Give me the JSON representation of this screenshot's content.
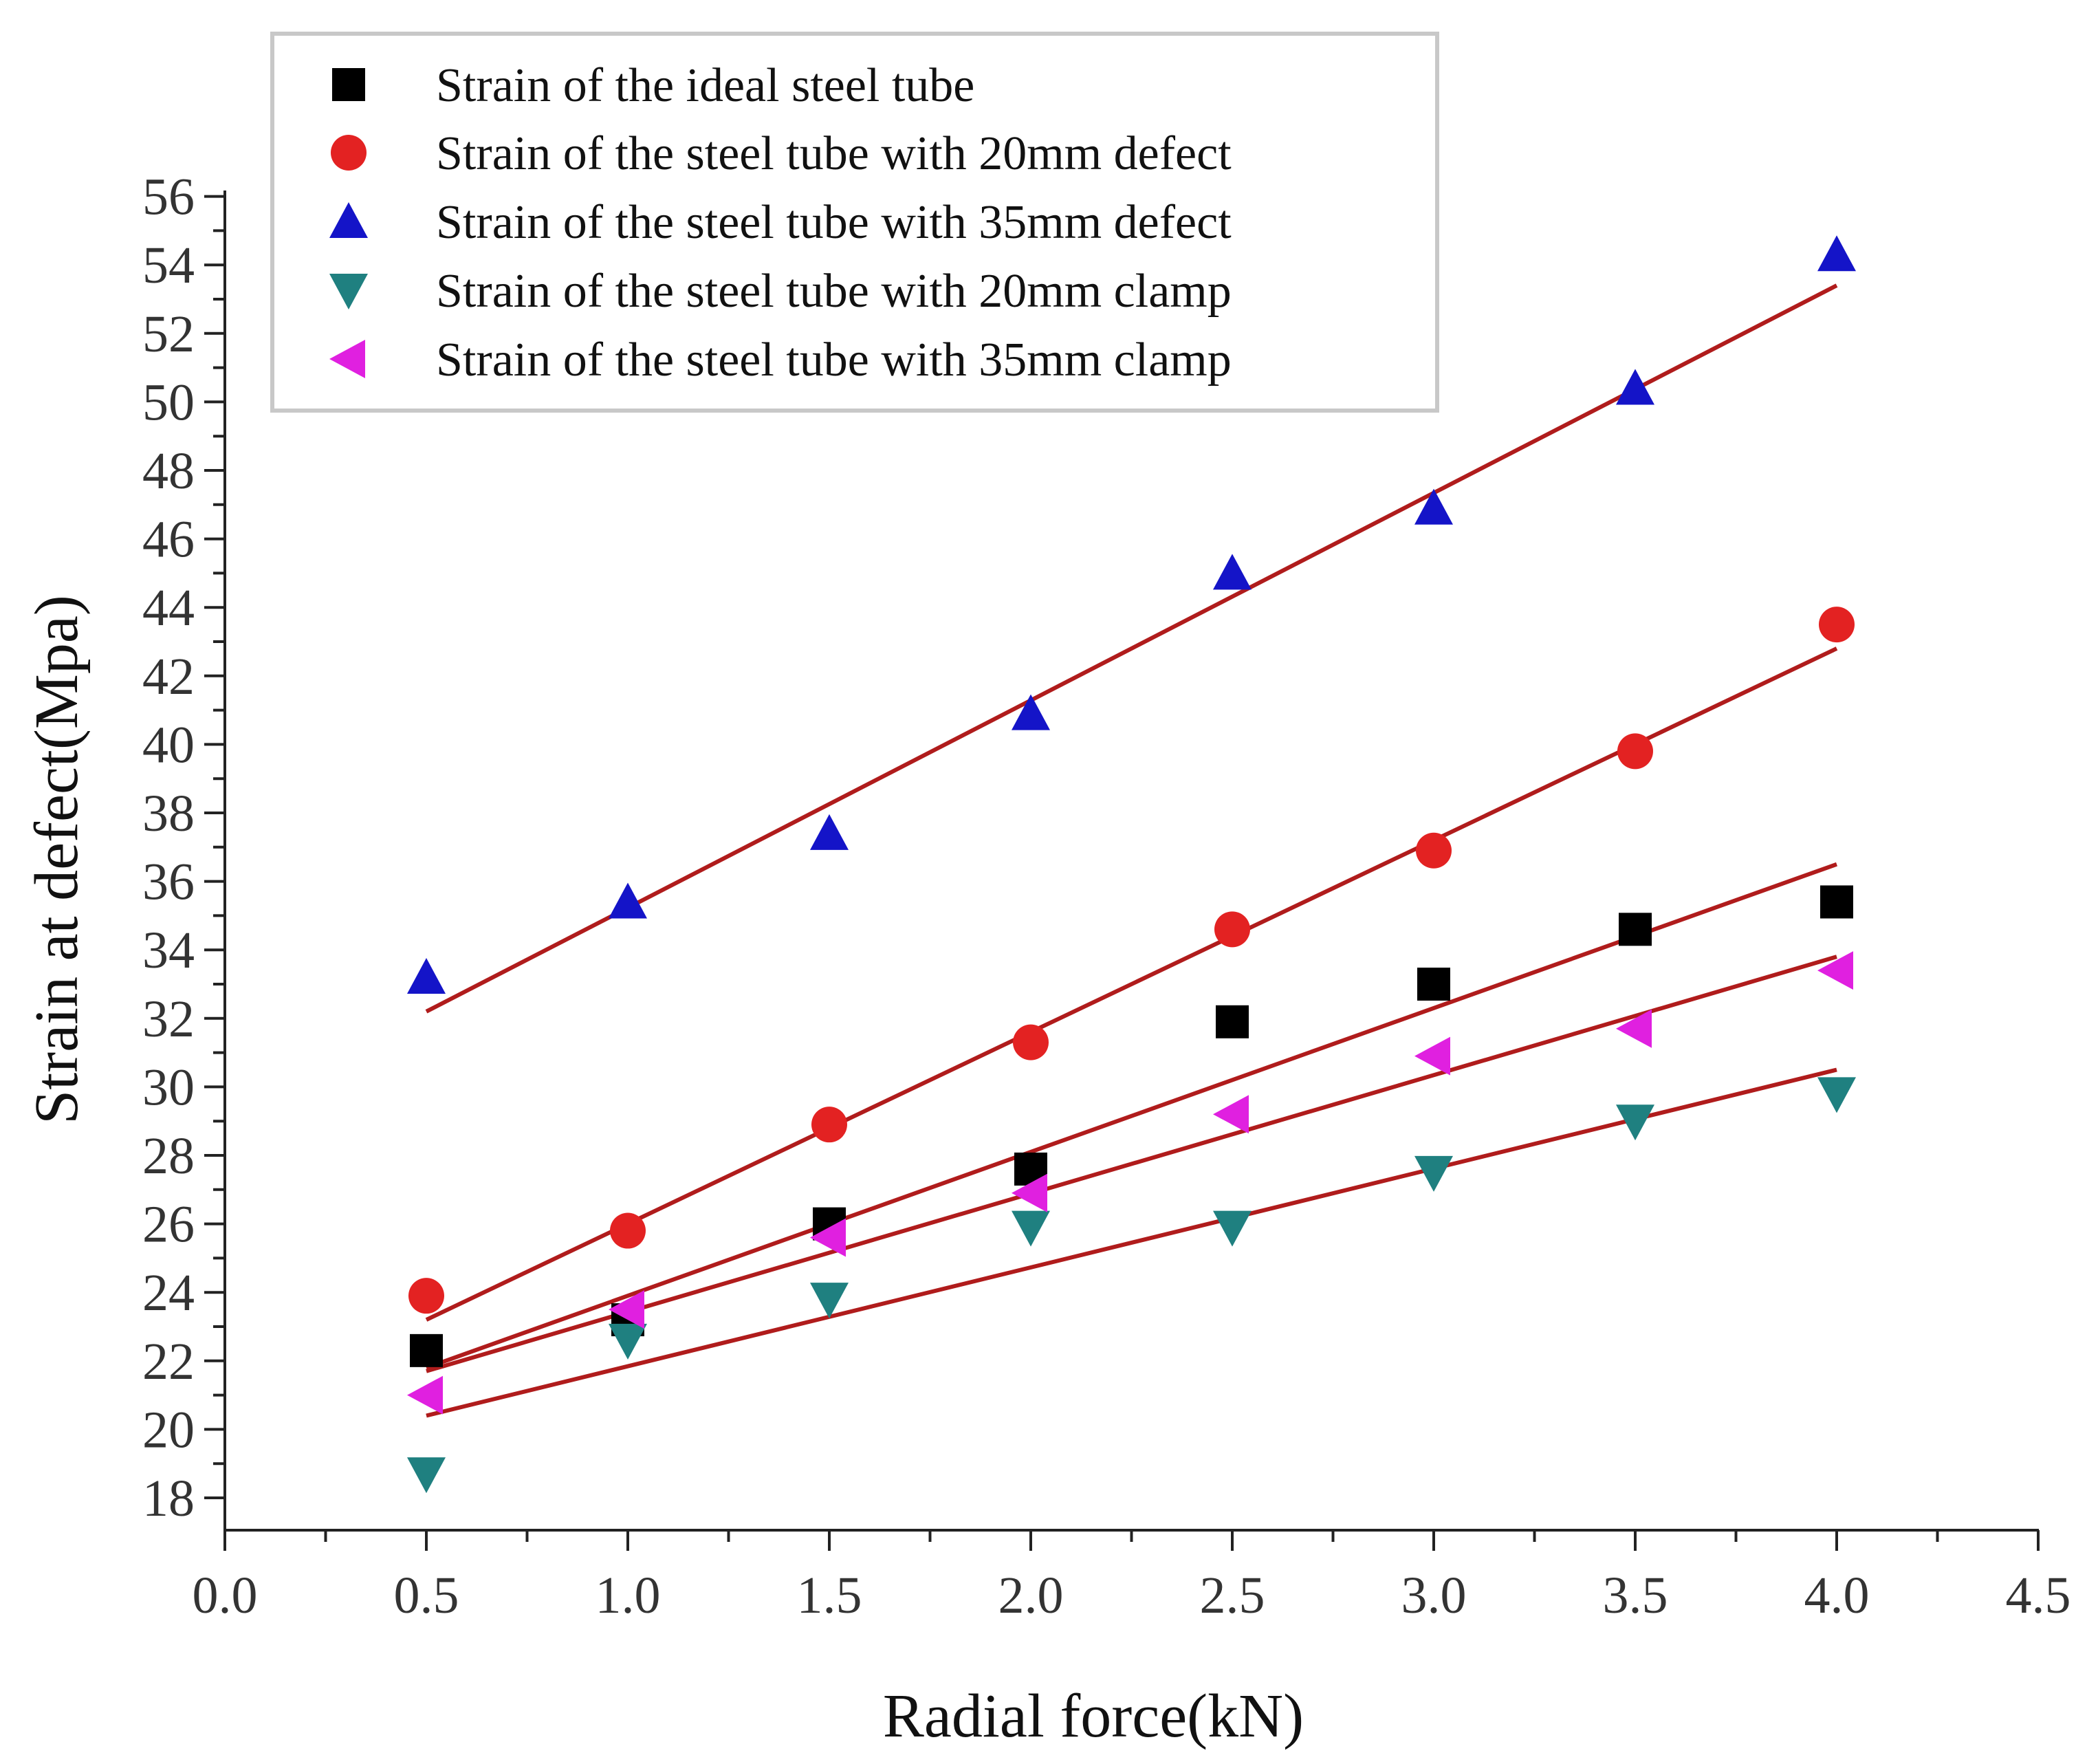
{
  "chart_data": {
    "type": "scatter",
    "title": "",
    "xlabel": "Radial force(kN)",
    "ylabel": "Strain at defect(Mpa)",
    "xlim": [
      0,
      4.5
    ],
    "ylim": [
      17,
      56
    ],
    "xticks": [
      "0.0",
      "0.5",
      "1.0",
      "1.5",
      "2.0",
      "2.5",
      "3.0",
      "3.5",
      "4.0",
      "4.5"
    ],
    "yticks": [
      "18",
      "20",
      "22",
      "24",
      "26",
      "28",
      "30",
      "32",
      "34",
      "36",
      "38",
      "40",
      "42",
      "44",
      "46",
      "48",
      "50",
      "52",
      "54",
      "56"
    ],
    "legend_position": "top-left",
    "fit_color": "#b01c1c",
    "series": [
      {
        "name": "Strain of the ideal steel tube",
        "marker": "square",
        "color": "#000000",
        "x": [
          0.5,
          1.0,
          1.5,
          2.0,
          2.5,
          3.0,
          3.5,
          4.0
        ],
        "y": [
          22.3,
          23.2,
          26.0,
          27.6,
          31.9,
          33.0,
          34.6,
          35.4
        ],
        "fit": [
          21.8,
          36.5
        ]
      },
      {
        "name": "Strain of the steel tube with 20mm defect",
        "marker": "circle",
        "color": "#e32222",
        "x": [
          0.5,
          1.0,
          1.5,
          2.0,
          2.5,
          3.0,
          3.5,
          4.0
        ],
        "y": [
          23.9,
          25.8,
          28.9,
          31.3,
          34.6,
          36.9,
          39.8,
          43.5
        ],
        "fit": [
          23.2,
          42.8
        ]
      },
      {
        "name": "Strain of the steel tube with 35mm defect",
        "marker": "triangle-up",
        "color": "#1414c8",
        "x": [
          0.5,
          1.0,
          1.5,
          2.0,
          2.5,
          3.0,
          3.5,
          4.0
        ],
        "y": [
          33.2,
          35.4,
          37.4,
          40.9,
          45.0,
          46.9,
          50.4,
          54.3
        ],
        "fit": [
          32.2,
          53.4
        ]
      },
      {
        "name": "Strain of the steel tube with 20mm clamp",
        "marker": "triangle-down",
        "color": "#1f8080",
        "x": [
          0.5,
          1.0,
          1.5,
          2.0,
          2.5,
          3.0,
          3.5,
          4.0
        ],
        "y": [
          18.7,
          22.6,
          23.8,
          25.9,
          25.9,
          27.5,
          29.0,
          29.8
        ],
        "fit": [
          20.4,
          30.5
        ]
      },
      {
        "name": "Strain of the steel tube with 35mm clamp",
        "marker": "triangle-left",
        "color": "#e020e0",
        "x": [
          0.5,
          1.0,
          1.5,
          2.0,
          2.5,
          3.0,
          3.5,
          4.0
        ],
        "y": [
          21.0,
          23.5,
          25.6,
          26.9,
          29.2,
          30.9,
          31.7,
          33.4
        ],
        "fit": [
          21.7,
          33.8
        ]
      }
    ]
  }
}
